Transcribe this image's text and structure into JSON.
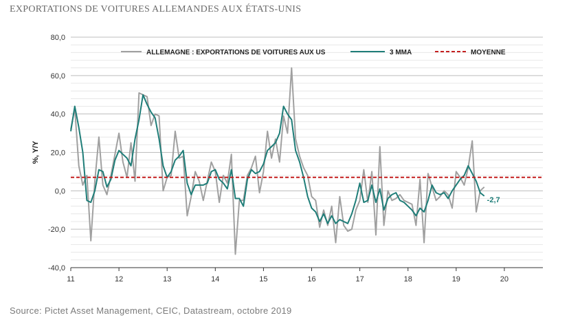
{
  "title": "EXPORTATIONS DE VOITURES ALLEMANDES AUX ÉTATS-UNIS",
  "source": "Source: Pictet Asset Management, CEIC, Datastream, octobre 2019",
  "colors": {
    "raw": "#a0a0a0",
    "mma": "#1e7d78",
    "mean": "#c41e1e",
    "grid": "#cfcfcf",
    "axis": "#333333"
  },
  "chart_data": {
    "type": "line",
    "ylabel": "%, Y/Y",
    "ylim": [
      -40,
      80
    ],
    "xlim": [
      11,
      20.8
    ],
    "yticks": [
      -40,
      -20,
      0,
      20,
      40,
      60,
      80
    ],
    "ytick_labels": [
      "-40,0",
      "-20,0",
      "0,0",
      "20,0",
      "40,0",
      "60,0",
      "80,0"
    ],
    "xticks": [
      11,
      12,
      13,
      14,
      15,
      16,
      17,
      18,
      19,
      20
    ],
    "xtick_labels": [
      "11",
      "12",
      "13",
      "14",
      "15",
      "16",
      "17",
      "18",
      "19",
      "20"
    ],
    "grid": true,
    "legend_position": "top",
    "mean": 7,
    "last_value_label": "-2,7",
    "series": [
      {
        "name": "ALLEMAGNE : EXPORTATIONS DE VOITURES AUX US",
        "x_start": 11,
        "step": 0.08333,
        "values": [
          32,
          43,
          13,
          3,
          8,
          -26,
          5,
          28,
          3,
          -2,
          8,
          19,
          30,
          15,
          7,
          25,
          5,
          51,
          50,
          49,
          34,
          40,
          39,
          0,
          7,
          8,
          31,
          17,
          18,
          -13,
          -3,
          10,
          5,
          -5,
          5,
          15,
          10,
          -6,
          8,
          4,
          19,
          -33,
          -5,
          -5,
          8,
          12,
          18,
          -1,
          10,
          31,
          17,
          27,
          15,
          39,
          30,
          64,
          27,
          18,
          12,
          8,
          -3,
          -5,
          -19,
          -10,
          -18,
          -8,
          -27,
          -3,
          -18,
          -21,
          -20,
          -10,
          -5,
          11,
          -6,
          10,
          -23,
          23,
          -18,
          0,
          -5,
          -4,
          -2,
          -5,
          -6,
          -7,
          -18,
          6,
          -27,
          9,
          2,
          -5,
          -3,
          0,
          -2,
          -9,
          10,
          7,
          3,
          12,
          26,
          -11,
          0,
          2
        ],
        "color_key": "raw"
      },
      {
        "name": "3 MMA",
        "x_start": 11,
        "step": 0.08333,
        "values": [
          31,
          44,
          33,
          20,
          -5,
          -6,
          0,
          11,
          10,
          2,
          6,
          16,
          21,
          19,
          17,
          13,
          27,
          37,
          50,
          45,
          41,
          38,
          27,
          13,
          7,
          10,
          16,
          18,
          21,
          4,
          -2,
          3,
          3,
          3,
          4,
          10,
          11,
          6,
          4,
          1,
          11,
          -4,
          -4,
          -8,
          6,
          11,
          9,
          10,
          14,
          21,
          23,
          25,
          30,
          44,
          40,
          37,
          21,
          15,
          7,
          -3,
          -9,
          -11,
          -16,
          -12,
          -17,
          -13,
          -17,
          -15,
          -16,
          -17,
          -12,
          -5,
          4,
          -6,
          -5,
          3,
          -6,
          1,
          -10,
          -4,
          -2,
          -1,
          -5,
          -6,
          -8,
          -10,
          -13,
          -9,
          -11,
          -5,
          3,
          -1,
          -2,
          -1,
          -4,
          0,
          3,
          6,
          8,
          13,
          9,
          5,
          -1,
          -2.7
        ],
        "color_key": "mma"
      },
      {
        "name": "MOYENNE",
        "constant": 7,
        "color_key": "mean"
      }
    ]
  }
}
